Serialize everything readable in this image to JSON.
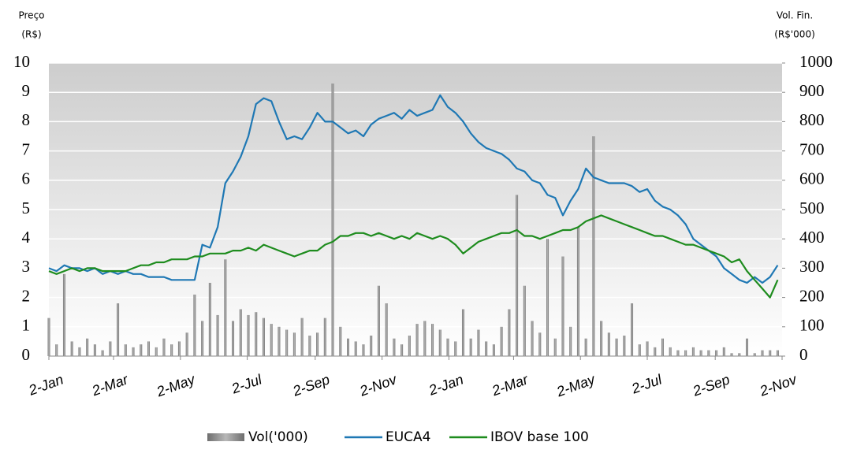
{
  "chart_data": {
    "type": "line",
    "ylabel": [
      "Preço",
      "(R$)"
    ],
    "y2label": [
      "Vol. Fin.",
      "(R$'000)"
    ],
    "ylim": [
      0,
      10
    ],
    "yticks": [
      0,
      1,
      2,
      3,
      4,
      5,
      6,
      7,
      8,
      9,
      10
    ],
    "y2lim": [
      0,
      1000
    ],
    "y2ticks": [
      0,
      100,
      200,
      300,
      400,
      500,
      600,
      700,
      800,
      900,
      1000
    ],
    "xlim": [
      0,
      669
    ],
    "xticks": [
      {
        "value": 0,
        "label": "2-Jan"
      },
      {
        "value": 59,
        "label": "2-Mar"
      },
      {
        "value": 120,
        "label": "2-May"
      },
      {
        "value": 181,
        "label": "2-Jul"
      },
      {
        "value": 243,
        "label": "2-Sep"
      },
      {
        "value": 304,
        "label": "2-Nov"
      },
      {
        "value": 365,
        "label": "2-Jan"
      },
      {
        "value": 424,
        "label": "2-Mar"
      },
      {
        "value": 485,
        "label": "2-May"
      },
      {
        "value": 546,
        "label": "2-Jul"
      },
      {
        "value": 608,
        "label": "2-Sep"
      },
      {
        "value": 669,
        "label": "2-Nov"
      }
    ],
    "grid": true,
    "legend": "bottom",
    "x": [
      0,
      7,
      14,
      21,
      28,
      35,
      42,
      49,
      56,
      63,
      70,
      77,
      84,
      91,
      98,
      105,
      112,
      119,
      126,
      133,
      140,
      147,
      154,
      161,
      168,
      175,
      182,
      189,
      196,
      203,
      210,
      217,
      224,
      231,
      238,
      245,
      252,
      259,
      266,
      273,
      280,
      287,
      294,
      301,
      308,
      315,
      322,
      329,
      336,
      343,
      350,
      357,
      364,
      371,
      378,
      385,
      392,
      399,
      406,
      413,
      420,
      427,
      434,
      441,
      448,
      455,
      462,
      469,
      476,
      483,
      490,
      497,
      504,
      511,
      518,
      525,
      532,
      539,
      546,
      553,
      560,
      567,
      574,
      581,
      588,
      595,
      602,
      609,
      616,
      623,
      630,
      637,
      644,
      651,
      658,
      665
    ],
    "series": [
      {
        "name": "Vol('000)",
        "type": "bar",
        "axis": "y2",
        "color": "#8c8c8c",
        "values": [
          130,
          40,
          280,
          50,
          30,
          60,
          40,
          20,
          50,
          180,
          40,
          30,
          40,
          50,
          30,
          60,
          40,
          50,
          80,
          210,
          120,
          250,
          140,
          330,
          120,
          160,
          140,
          150,
          130,
          110,
          100,
          90,
          80,
          130,
          70,
          80,
          130,
          930,
          100,
          60,
          50,
          40,
          70,
          240,
          180,
          60,
          40,
          70,
          110,
          120,
          110,
          90,
          60,
          50,
          160,
          60,
          90,
          50,
          40,
          100,
          160,
          550,
          240,
          120,
          80,
          400,
          60,
          340,
          100,
          440,
          60,
          750,
          120,
          80,
          60,
          70,
          180,
          40,
          50,
          30,
          60,
          30,
          20,
          20,
          30,
          20,
          20,
          20,
          30,
          10,
          10,
          60,
          10,
          20,
          20,
          20
        ]
      },
      {
        "name": "EUCA4",
        "type": "line",
        "color": "#1f78b4",
        "values": [
          3.0,
          2.9,
          3.1,
          3.0,
          3.0,
          2.9,
          3.0,
          2.8,
          2.9,
          2.8,
          2.9,
          2.8,
          2.8,
          2.7,
          2.7,
          2.7,
          2.6,
          2.6,
          2.6,
          2.6,
          3.8,
          3.7,
          4.4,
          5.9,
          6.3,
          6.8,
          7.5,
          8.6,
          8.8,
          8.7,
          8.0,
          7.4,
          7.5,
          7.4,
          7.8,
          8.3,
          8.0,
          8.0,
          7.8,
          7.6,
          7.7,
          7.5,
          7.9,
          8.1,
          8.2,
          8.3,
          8.1,
          8.4,
          8.2,
          8.3,
          8.4,
          8.9,
          8.5,
          8.3,
          8.0,
          7.6,
          7.3,
          7.1,
          7.0,
          6.9,
          6.7,
          6.4,
          6.3,
          6.0,
          5.9,
          5.5,
          5.4,
          4.8,
          5.3,
          5.7,
          6.4,
          6.1,
          6.0,
          5.9,
          5.9,
          5.9,
          5.8,
          5.6,
          5.7,
          5.3,
          5.1,
          5.0,
          4.8,
          4.5,
          4.0,
          3.8,
          3.6,
          3.4,
          3.0,
          2.8,
          2.6,
          2.5,
          2.7,
          2.5,
          2.7,
          3.1
        ]
      },
      {
        "name": "IBOV base 100",
        "type": "line",
        "color": "#1e8c1e",
        "values": [
          2.9,
          2.8,
          2.9,
          3.0,
          2.9,
          3.0,
          3.0,
          2.9,
          2.9,
          2.9,
          2.9,
          3.0,
          3.1,
          3.1,
          3.2,
          3.2,
          3.3,
          3.3,
          3.3,
          3.4,
          3.4,
          3.5,
          3.5,
          3.5,
          3.6,
          3.6,
          3.7,
          3.6,
          3.8,
          3.7,
          3.6,
          3.5,
          3.4,
          3.5,
          3.6,
          3.6,
          3.8,
          3.9,
          4.1,
          4.1,
          4.2,
          4.2,
          4.1,
          4.2,
          4.1,
          4.0,
          4.1,
          4.0,
          4.2,
          4.1,
          4.0,
          4.1,
          4.0,
          3.8,
          3.5,
          3.7,
          3.9,
          4.0,
          4.1,
          4.2,
          4.2,
          4.3,
          4.1,
          4.1,
          4.0,
          4.1,
          4.2,
          4.3,
          4.3,
          4.4,
          4.6,
          4.7,
          4.8,
          4.7,
          4.6,
          4.5,
          4.4,
          4.3,
          4.2,
          4.1,
          4.1,
          4.0,
          3.9,
          3.8,
          3.8,
          3.7,
          3.6,
          3.5,
          3.4,
          3.2,
          3.3,
          2.9,
          2.6,
          2.3,
          2.0,
          2.6
        ]
      }
    ]
  }
}
